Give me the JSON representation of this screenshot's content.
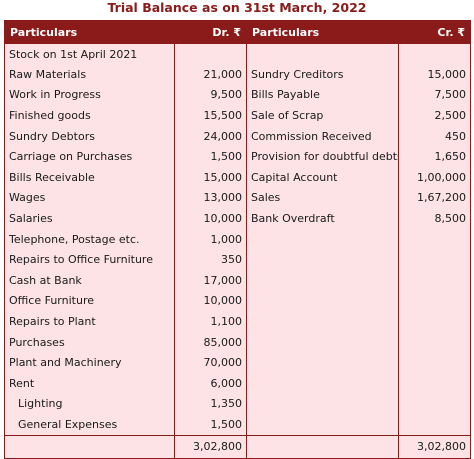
{
  "title": "Trial Balance as on 31st March, 2022",
  "headers": {
    "debit_particulars": "Particulars",
    "debit_amount": "Dr. ₹",
    "credit_particulars": "Particulars",
    "credit_amount": "Cr. ₹"
  },
  "opening_row": "Stock on 1st April 2021",
  "rows": [
    {
      "dr_label": "Raw Materials",
      "dr_amount": "21,000",
      "cr_label": "Sundry Creditors",
      "cr_amount": "15,000"
    },
    {
      "dr_label": "Work in Progress",
      "dr_amount": "9,500",
      "cr_label": "Bills Payable",
      "cr_amount": "7,500"
    },
    {
      "dr_label": "Finished goods",
      "dr_amount": "15,500",
      "cr_label": "Sale of Scrap",
      "cr_amount": "2,500"
    },
    {
      "dr_label": "Sundry Debtors",
      "dr_amount": "24,000",
      "cr_label": "Commission Received",
      "cr_amount": "450"
    },
    {
      "dr_label": "Carriage on Purchases",
      "dr_amount": "1,500",
      "cr_label": "Provision for doubtful debts",
      "cr_amount": "1,650"
    },
    {
      "dr_label": "Bills Receivable",
      "dr_amount": "15,000",
      "cr_label": "Capital Account",
      "cr_amount": "1,00,000"
    },
    {
      "dr_label": "Wages",
      "dr_amount": "13,000",
      "cr_label": "Sales",
      "cr_amount": "1,67,200"
    },
    {
      "dr_label": "Salaries",
      "dr_amount": "10,000",
      "cr_label": "Bank Overdraft",
      "cr_amount": "8,500"
    },
    {
      "dr_label": "Telephone, Postage etc.",
      "dr_amount": "1,000",
      "cr_label": "",
      "cr_amount": ""
    },
    {
      "dr_label": "Repairs to Office Furniture",
      "dr_amount": "350",
      "cr_label": "",
      "cr_amount": ""
    },
    {
      "dr_label": "Cash at Bank",
      "dr_amount": "17,000",
      "cr_label": "",
      "cr_amount": ""
    },
    {
      "dr_label": "Office Furniture",
      "dr_amount": "10,000",
      "cr_label": "",
      "cr_amount": ""
    },
    {
      "dr_label": "Repairs to Plant",
      "dr_amount": "1,100",
      "cr_label": "",
      "cr_amount": ""
    },
    {
      "dr_label": "Purchases",
      "dr_amount": "85,000",
      "cr_label": "",
      "cr_amount": ""
    },
    {
      "dr_label": "Plant and Machinery",
      "dr_amount": "70,000",
      "cr_label": "",
      "cr_amount": ""
    },
    {
      "dr_label": "Rent",
      "dr_amount": "6,000",
      "cr_label": "",
      "cr_amount": ""
    },
    {
      "dr_label": "Lighting",
      "dr_amount": "1,350",
      "cr_label": "",
      "cr_amount": "",
      "indent": true
    },
    {
      "dr_label": "General Expenses",
      "dr_amount": "1,500",
      "cr_label": "",
      "cr_amount": "",
      "indent": true
    }
  ],
  "totals": {
    "dr": "3,02,800",
    "cr": "3,02,800"
  },
  "colors": {
    "header_bg": "#8b1a1a",
    "body_bg": "#fde3e6",
    "title_text": "#8b1a1a"
  }
}
